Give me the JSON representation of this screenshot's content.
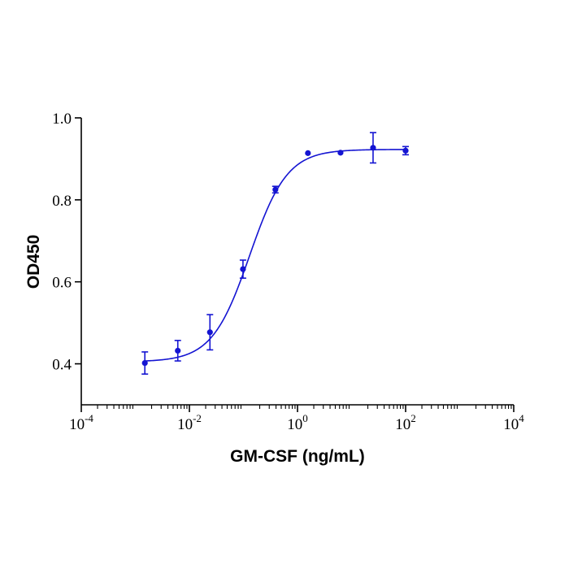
{
  "chart_data": {
    "type": "scatter",
    "title": "",
    "xlabel": "GM-CSF (ng/mL)",
    "ylabel": "OD450",
    "x_scale": "log",
    "xlim": [
      0.0001,
      10000
    ],
    "ylim": [
      0.3,
      1.0
    ],
    "x_ticks": [
      {
        "value": 0.0001,
        "base": "10",
        "exp": "-4"
      },
      {
        "value": 0.01,
        "base": "10",
        "exp": "-2"
      },
      {
        "value": 1,
        "base": "10",
        "exp": "0"
      },
      {
        "value": 100,
        "base": "10",
        "exp": "2"
      },
      {
        "value": 10000,
        "base": "10",
        "exp": "4"
      }
    ],
    "y_ticks": [
      "0.4",
      "0.6",
      "0.8",
      "1.0"
    ],
    "grid": false,
    "color": "#1414d2",
    "series": [
      {
        "points": [
          {
            "x": 0.0015,
            "y": 0.402,
            "err": 0.027
          },
          {
            "x": 0.0061,
            "y": 0.432,
            "err": 0.025
          },
          {
            "x": 0.024,
            "y": 0.477,
            "err": 0.043
          },
          {
            "x": 0.098,
            "y": 0.631,
            "err": 0.022
          },
          {
            "x": 0.39,
            "y": 0.825,
            "err": 0.008
          },
          {
            "x": 1.56,
            "y": 0.914,
            "err": 0
          },
          {
            "x": 6.25,
            "y": 0.915,
            "err": 0
          },
          {
            "x": 25,
            "y": 0.927,
            "err": 0.037
          },
          {
            "x": 100,
            "y": 0.92,
            "err": 0.01
          }
        ],
        "fit": {
          "model": "4PL",
          "bottom": 0.405,
          "top": 0.923,
          "ec50": 0.13,
          "hill": 1.25,
          "x_range": [
            0.0015,
            100
          ]
        }
      }
    ]
  }
}
